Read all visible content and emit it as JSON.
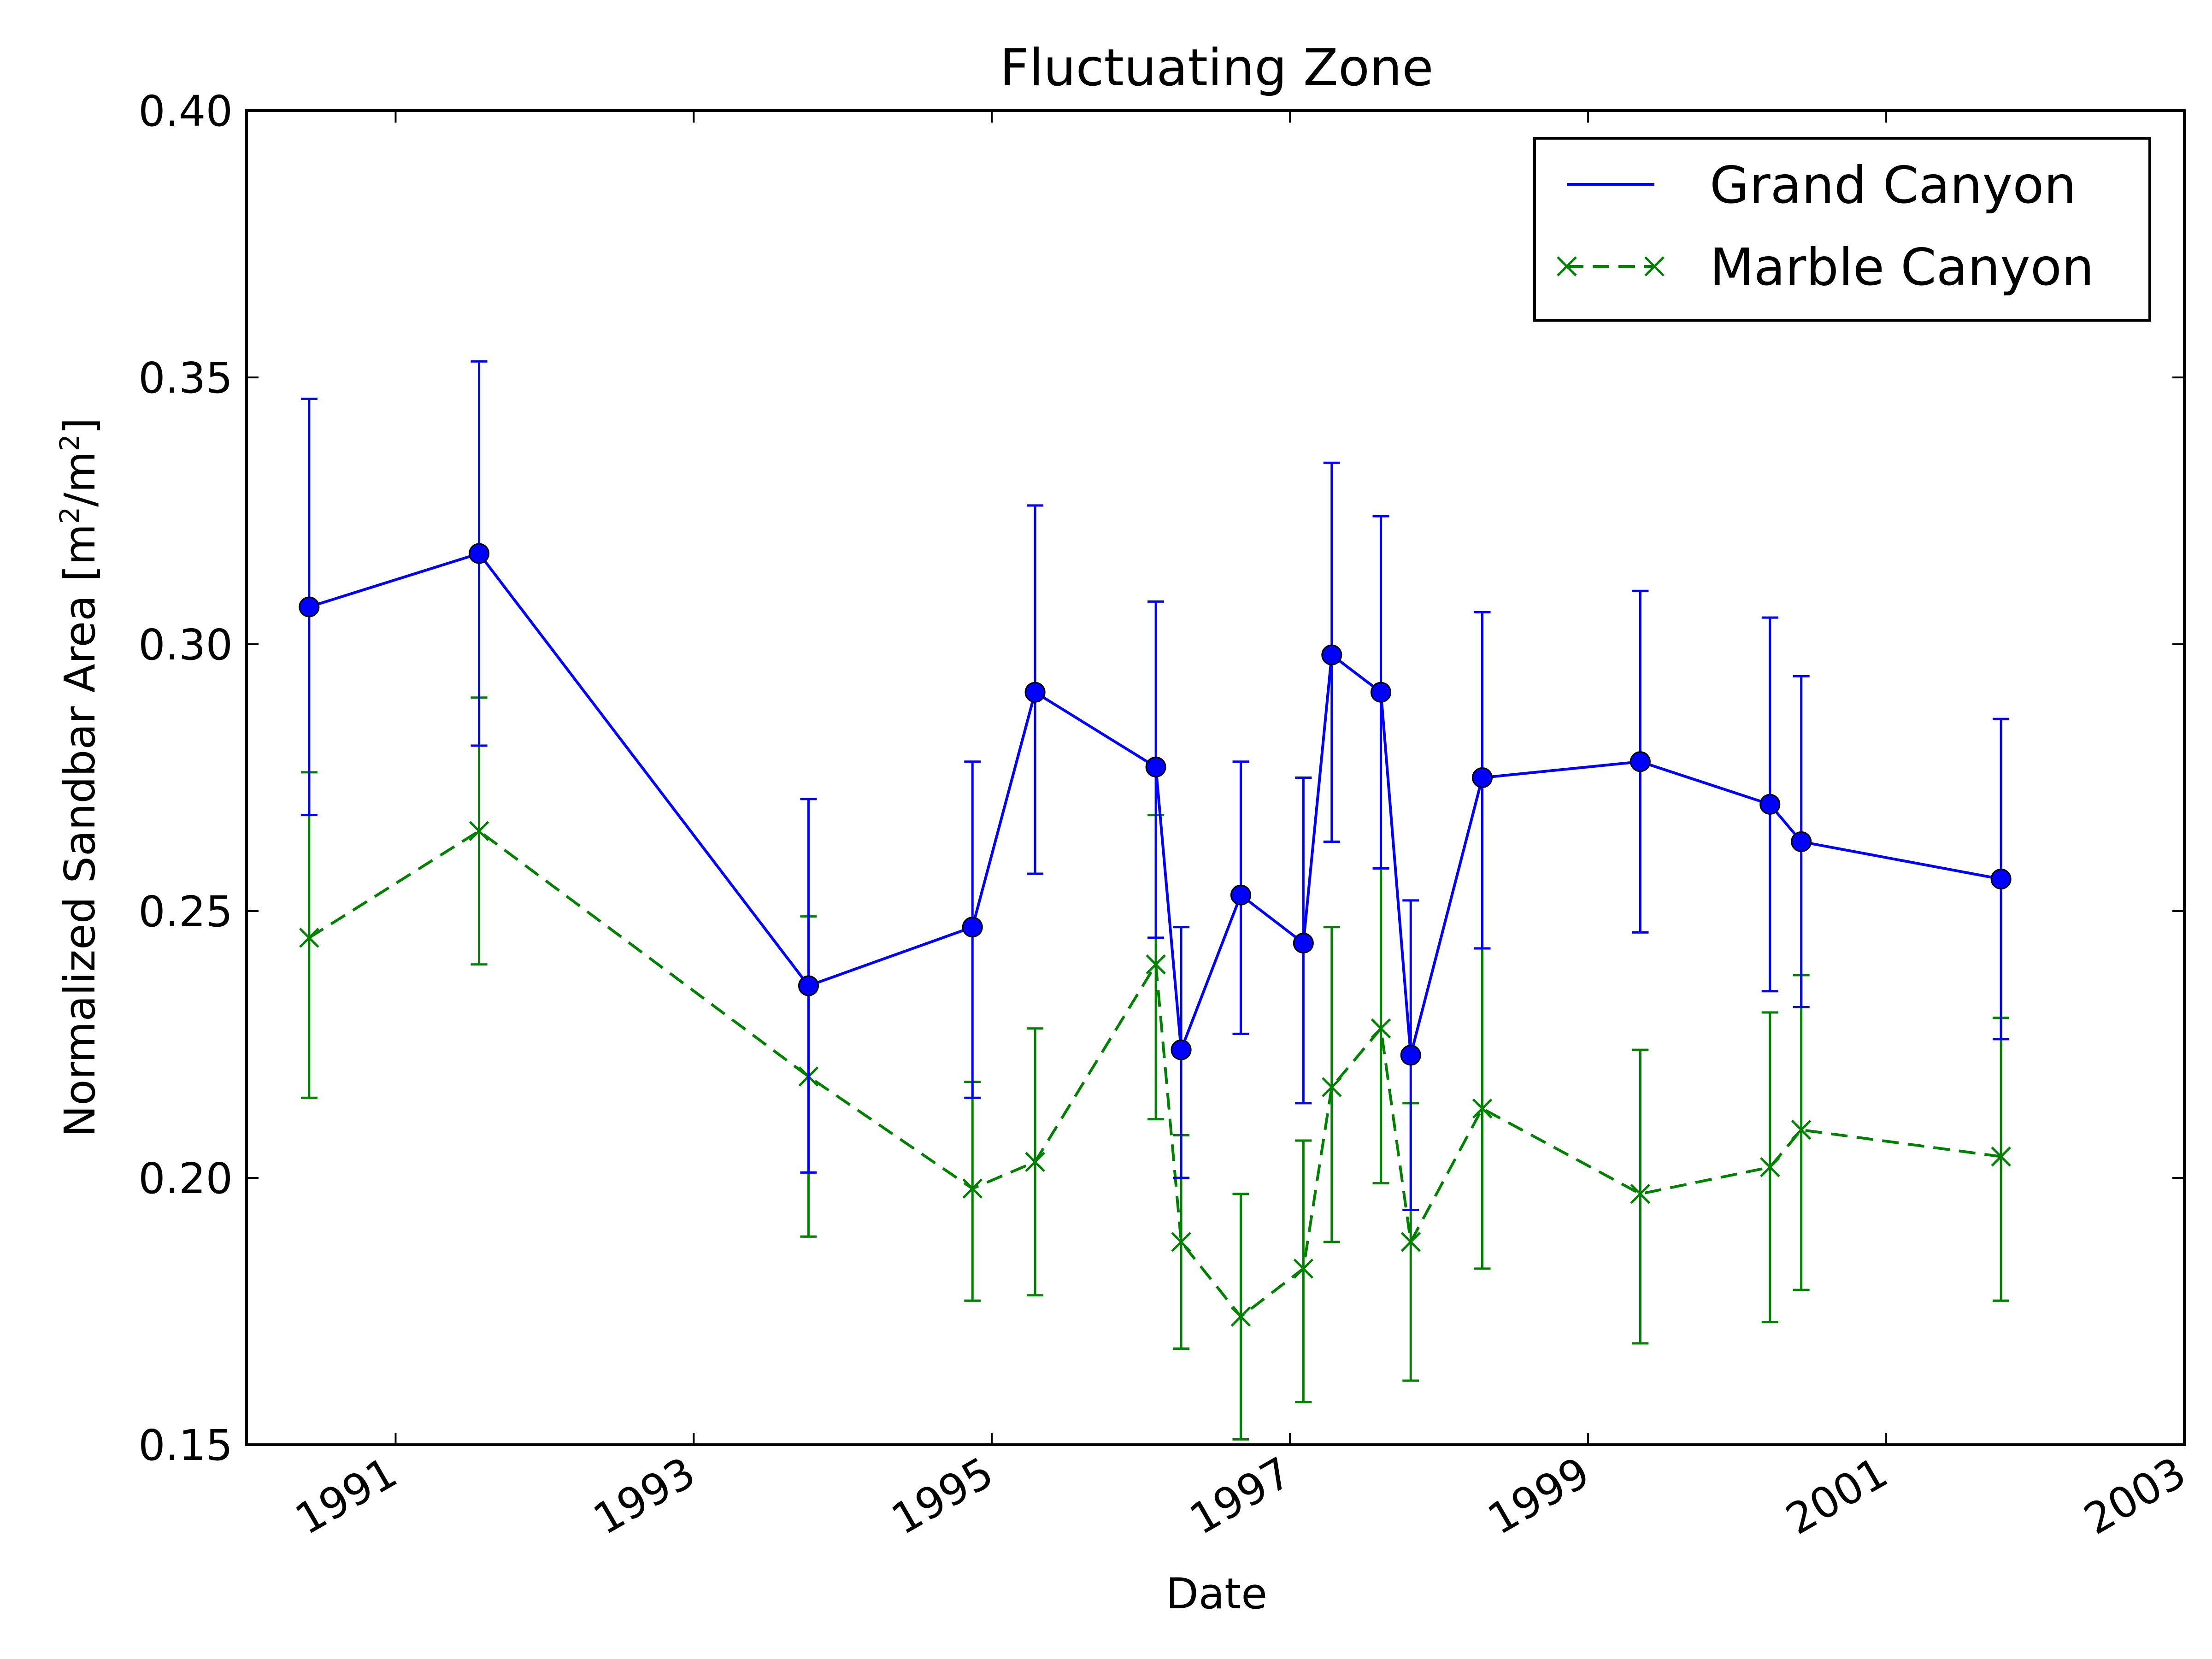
{
  "chart_data": {
    "type": "line",
    "title": "Fluctuating Zone",
    "xlabel": "Date",
    "ylabel": {
      "prefix": "Normalized Sandbar Area [m",
      "exp1": "2",
      "mid": "/m",
      "exp2": "2",
      "suffix": "]"
    },
    "xlim": [
      1990.0,
      2003.0
    ],
    "ylim": [
      0.15,
      0.4
    ],
    "x_ticks": [
      {
        "value": 1991,
        "label": "1991"
      },
      {
        "value": 1993,
        "label": "1993"
      },
      {
        "value": 1995,
        "label": "1995"
      },
      {
        "value": 1997,
        "label": "1997"
      },
      {
        "value": 1999,
        "label": "1999"
      },
      {
        "value": 2001,
        "label": "2001"
      },
      {
        "value": 2003,
        "label": "2003"
      }
    ],
    "y_ticks": [
      {
        "value": 0.15,
        "label": "0.15"
      },
      {
        "value": 0.2,
        "label": "0.20"
      },
      {
        "value": 0.25,
        "label": "0.25"
      },
      {
        "value": 0.3,
        "label": "0.30"
      },
      {
        "value": 0.35,
        "label": "0.35"
      },
      {
        "value": 0.4,
        "label": "0.40"
      }
    ],
    "grid": false,
    "legend_position": "top-right",
    "series": [
      {
        "name": "Grand Canyon",
        "color": "#0000ff",
        "line_style": "solid",
        "marker": "circle",
        "x": [
          1990.42,
          1991.56,
          1993.77,
          1994.87,
          1995.29,
          1996.1,
          1996.27,
          1996.67,
          1997.09,
          1997.28,
          1997.61,
          1997.81,
          1998.29,
          1999.35,
          2000.22,
          2000.43,
          2001.77
        ],
        "y": [
          0.307,
          0.317,
          0.236,
          0.247,
          0.291,
          0.277,
          0.224,
          0.253,
          0.244,
          0.298,
          0.291,
          0.223,
          0.275,
          0.278,
          0.27,
          0.263,
          0.256
        ],
        "err_low": [
          0.268,
          0.281,
          0.201,
          0.215,
          0.257,
          0.245,
          0.2,
          0.227,
          0.214,
          0.263,
          0.258,
          0.194,
          0.243,
          0.246,
          0.235,
          0.232,
          0.226
        ],
        "err_high": [
          0.346,
          0.353,
          0.271,
          0.278,
          0.326,
          0.308,
          0.247,
          0.278,
          0.275,
          0.334,
          0.324,
          0.252,
          0.306,
          0.31,
          0.305,
          0.294,
          0.286
        ]
      },
      {
        "name": "Marble Canyon",
        "color": "#008000",
        "line_style": "dashed",
        "marker": "x",
        "x": [
          1990.42,
          1991.56,
          1993.77,
          1994.87,
          1995.29,
          1996.1,
          1996.27,
          1996.67,
          1997.09,
          1997.28,
          1997.61,
          1997.81,
          1998.29,
          1999.35,
          2000.22,
          2000.43,
          2001.77
        ],
        "y": [
          0.245,
          0.265,
          0.219,
          0.198,
          0.203,
          0.24,
          0.188,
          0.174,
          0.183,
          0.217,
          0.228,
          0.188,
          0.213,
          0.197,
          0.202,
          0.209,
          0.204
        ],
        "err_low": [
          0.215,
          0.24,
          0.189,
          0.177,
          0.178,
          0.211,
          0.168,
          0.151,
          0.158,
          0.188,
          0.199,
          0.162,
          0.183,
          0.169,
          0.173,
          0.179,
          0.177
        ],
        "err_high": [
          0.276,
          0.29,
          0.249,
          0.218,
          0.228,
          0.268,
          0.208,
          0.197,
          0.207,
          0.247,
          0.258,
          0.214,
          0.243,
          0.224,
          0.231,
          0.238,
          0.23
        ]
      }
    ]
  }
}
